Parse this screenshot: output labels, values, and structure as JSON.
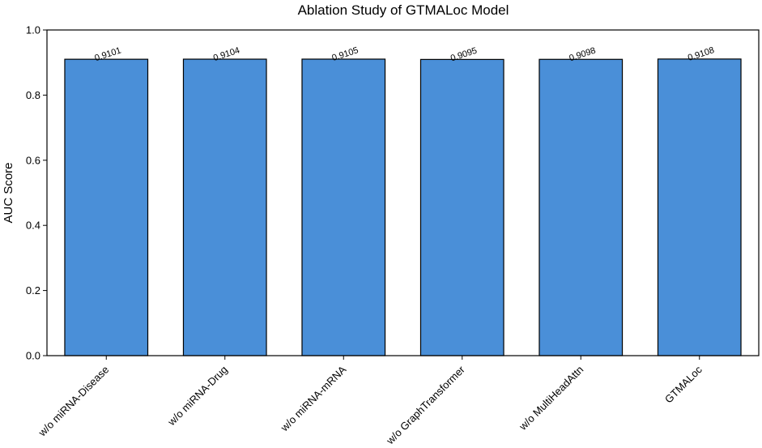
{
  "chart_data": {
    "type": "bar",
    "title": "Ablation Study of GTMALoc Model",
    "xlabel": "",
    "ylabel": "AUC Score",
    "categories": [
      "w/o miRNA-Disease",
      "w/o miRNA-Drug",
      "w/o miRNA-mRNA",
      "w/o GraphTransformer",
      "w/o MultiHeadAttn",
      "GTMALoc"
    ],
    "values": [
      0.9101,
      0.9104,
      0.9105,
      0.9095,
      0.9098,
      0.9108
    ],
    "value_labels": [
      "0.9101",
      "0.9104",
      "0.9105",
      "0.9095",
      "0.9098",
      "0.9108"
    ],
    "ylim": [
      0.0,
      1.0
    ],
    "yticks": [
      0.0,
      0.2,
      0.4,
      0.6,
      0.8,
      1.0
    ],
    "ytick_labels": [
      "0.0",
      "0.2",
      "0.4",
      "0.6",
      "0.8",
      "1.0"
    ],
    "grid": false,
    "bar_color": "#4a8fd8",
    "bar_edge_color": "#000000"
  }
}
